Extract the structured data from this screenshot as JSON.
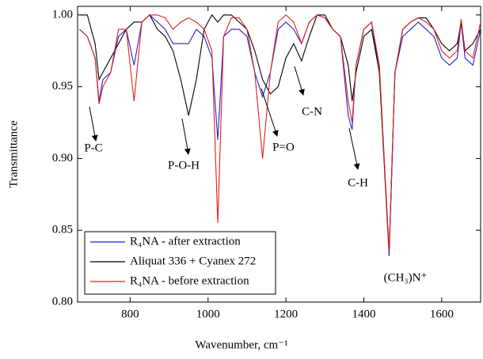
{
  "chart_data": {
    "type": "line",
    "x_label": "Wavenumber, cm⁻¹",
    "y_label": "Transmittance",
    "x": [
      670,
      690,
      710,
      720,
      730,
      750,
      770,
      790,
      810,
      830,
      850,
      870,
      890,
      910,
      930,
      950,
      970,
      990,
      1010,
      1025,
      1040,
      1060,
      1080,
      1100,
      1120,
      1140,
      1160,
      1180,
      1200,
      1220,
      1240,
      1260,
      1280,
      1300,
      1320,
      1340,
      1360,
      1370,
      1380,
      1400,
      1420,
      1440,
      1465,
      1480,
      1500,
      1520,
      1540,
      1560,
      1580,
      1600,
      1620,
      1640,
      1650,
      1660,
      1680,
      1700
    ],
    "series": [
      {
        "name": "R₄NA - after extraction",
        "color": "#2222cc",
        "values": [
          0.99,
          0.985,
          0.97,
          0.94,
          0.955,
          0.96,
          0.985,
          0.99,
          0.965,
          0.995,
          1.0,
          0.995,
          0.99,
          0.98,
          0.98,
          0.98,
          0.99,
          0.985,
          0.97,
          0.913,
          0.985,
          0.99,
          0.99,
          0.985,
          0.96,
          0.943,
          0.96,
          0.99,
          0.995,
          0.99,
          0.98,
          0.995,
          1.0,
          0.998,
          0.99,
          0.985,
          0.93,
          0.92,
          0.965,
          0.99,
          0.995,
          0.96,
          0.832,
          0.96,
          0.985,
          0.99,
          0.995,
          0.99,
          0.985,
          0.97,
          0.965,
          0.97,
          0.995,
          0.97,
          0.965,
          0.99
        ]
      },
      {
        "name": "Aliquat 336 + Cyanex 272",
        "color": "#000000",
        "values": [
          1.0,
          1.0,
          0.98,
          0.955,
          0.96,
          0.97,
          0.98,
          0.99,
          0.995,
          0.995,
          1.0,
          0.99,
          0.985,
          0.975,
          0.955,
          0.93,
          0.955,
          0.99,
          1.0,
          0.995,
          1.0,
          1.0,
          0.995,
          0.99,
          0.975,
          0.955,
          0.945,
          0.95,
          0.97,
          0.98,
          0.968,
          0.985,
          1.0,
          1.0,
          0.99,
          0.985,
          0.965,
          0.94,
          0.96,
          0.985,
          0.99,
          0.96,
          0.835,
          0.96,
          0.99,
          0.995,
          0.998,
          0.998,
          0.99,
          0.98,
          0.975,
          0.98,
          0.995,
          0.975,
          0.98,
          0.99
        ]
      },
      {
        "name": "R₄NA - before extraction",
        "color": "#e02020",
        "values": [
          0.99,
          0.985,
          0.97,
          0.938,
          0.95,
          0.96,
          0.99,
          0.99,
          0.94,
          0.995,
          1.0,
          1.0,
          0.998,
          0.99,
          0.995,
          0.998,
          0.995,
          0.99,
          0.975,
          0.855,
          0.985,
          0.998,
          0.998,
          0.99,
          0.96,
          0.9,
          0.96,
          0.995,
          1.0,
          0.995,
          0.98,
          0.995,
          1.0,
          0.998,
          0.99,
          0.985,
          0.94,
          0.925,
          0.965,
          0.99,
          0.995,
          0.965,
          0.835,
          0.96,
          0.99,
          0.995,
          0.998,
          0.995,
          0.99,
          0.975,
          0.97,
          0.975,
          0.997,
          0.975,
          0.97,
          0.995
        ]
      }
    ],
    "xlim": [
      665,
      1700
    ],
    "ylim": [
      0.8,
      1.006
    ],
    "xticks": [
      800,
      1000,
      1200,
      1400,
      1600
    ],
    "yticks": [
      {
        "value": 0.8,
        "label": "0.80"
      },
      {
        "value": 0.85,
        "label": "0.85"
      },
      {
        "value": 0.9,
        "label": "0.90"
      },
      {
        "value": 0.95,
        "label": "0.95"
      },
      {
        "value": 1.0,
        "label": "1.00"
      }
    ],
    "annotations": [
      "P-C",
      "P-O-H",
      "P=O",
      "C-N",
      "C-H",
      "(CH₃)N⁺"
    ],
    "legend": "lower left",
    "grid": false
  }
}
